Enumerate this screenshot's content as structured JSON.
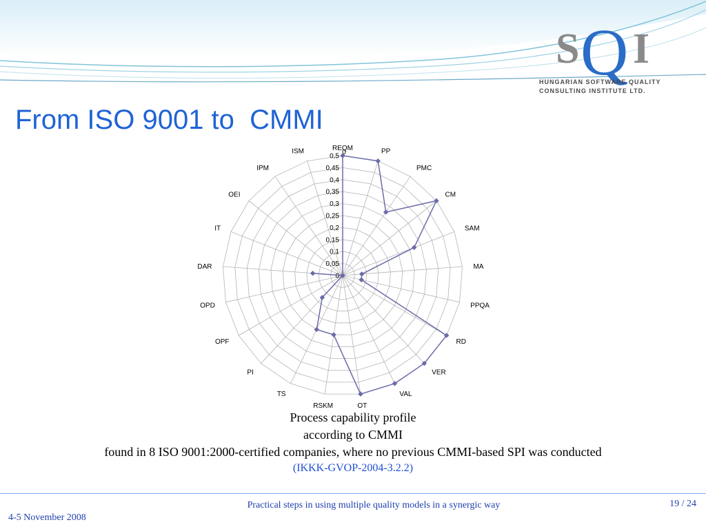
{
  "slide": {
    "title": "From ISO 9001 to  CMMI",
    "caption_lines": [
      "Process capability profile",
      "according to CMMI",
      "found in 8 ISO 9001:2000-certified companies, where no previous CMMI-based SPI was conducted"
    ],
    "source": "(IKKK-GVOP-2004-3.2.2)",
    "footer_date": "4-5 November 2008",
    "footer_center": "Practical steps in using multiple quality models in a synergic way",
    "footer_page": "19 / 24"
  },
  "logo": {
    "letter_s": "S",
    "letter_q": "Q",
    "letter_i": "I",
    "line1": "HUNGARIAN SOFTWARE QUALITY",
    "line2": "CONSULTING INSTITUTE LTD."
  },
  "colors": {
    "title": "#1f63d6",
    "series": "#6b6ba8",
    "grid": "#b4b4b4",
    "footer": "#1f3fae"
  },
  "chart_data": {
    "type": "radar",
    "categories": [
      "REQM",
      "PP",
      "PMC",
      "CM",
      "SAM",
      "MA",
      "PPQA",
      "RD",
      "VER",
      "VAL",
      "OT",
      "RSKM",
      "TS",
      "PI",
      "OPF",
      "OPD",
      "DAR",
      "IT",
      "OEI",
      "IPM",
      "ISM"
    ],
    "tick_labels": [
      "0",
      "0,05",
      "0,1",
      "0,15",
      "0,2",
      "0,25",
      "0,3",
      "0,35",
      "0,4",
      "0,45",
      "0,5"
    ],
    "axis_top_label": "0",
    "rmin": 0,
    "rmax": 0.5,
    "step": 0.05,
    "grid": true,
    "legend": "none",
    "series": [
      {
        "values": [
          0.5,
          0.5,
          0.32,
          0.5,
          0.32,
          0.08,
          0.08,
          0.5,
          0.5,
          0.5,
          0.5,
          0.25,
          0.25,
          0.125,
          0.0,
          0.0,
          0.125,
          0.0,
          0.0,
          0.0,
          0.0
        ]
      }
    ]
  }
}
